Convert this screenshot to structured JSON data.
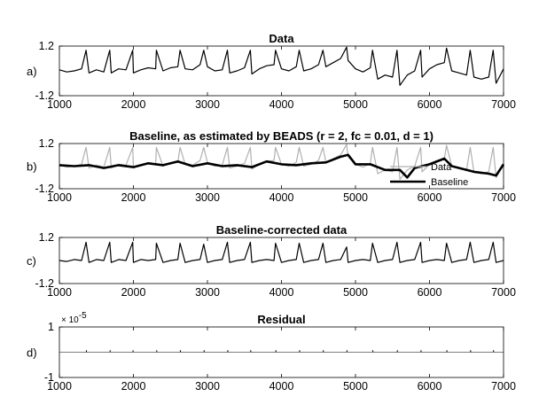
{
  "chart_data": [
    {
      "type": "line",
      "panel_label": "a)",
      "title": "Data",
      "xlim": [
        1000,
        7000
      ],
      "ylim": [
        -1.2,
        1.2
      ],
      "x_ticks": [
        "1000",
        "2000",
        "3000",
        "4000",
        "5000",
        "6000",
        "7000"
      ],
      "y_ticks": [
        "1.2",
        "-1.2"
      ],
      "series": [
        {
          "color": "#000000",
          "x": [
            1000,
            1100,
            1200,
            1300,
            1360,
            1400,
            1500,
            1600,
            1680,
            1700,
            1800,
            1900,
            1990,
            2000,
            2100,
            2200,
            2300,
            2310,
            2400,
            2500,
            2600,
            2630,
            2700,
            2800,
            2900,
            2950,
            3000,
            3100,
            3200,
            3270,
            3300,
            3400,
            3500,
            3580,
            3600,
            3700,
            3800,
            3900,
            3920,
            4000,
            4100,
            4200,
            4240,
            4300,
            4400,
            4500,
            4560,
            4600,
            4700,
            4800,
            4880,
            4900,
            5000,
            5100,
            5200,
            5230,
            5300,
            5400,
            5500,
            5560,
            5600,
            5700,
            5800,
            5880,
            5900,
            6000,
            6100,
            6200,
            6230,
            6300,
            6400,
            6500,
            6550,
            6600,
            6700,
            6800,
            6860,
            6900,
            7000
          ],
          "y": [
            0.05,
            -0.05,
            0.0,
            0.1,
            1.0,
            -0.1,
            0.05,
            -0.05,
            1.0,
            -0.1,
            0.1,
            0.05,
            1.0,
            -0.1,
            0.05,
            0.15,
            0.1,
            1.0,
            0.0,
            0.15,
            0.2,
            1.0,
            0.1,
            0.05,
            0.3,
            1.0,
            0.2,
            0.0,
            0.05,
            1.0,
            -0.1,
            0.0,
            0.15,
            1.0,
            -0.15,
            0.1,
            0.25,
            0.3,
            1.0,
            0.1,
            0.0,
            0.2,
            1.0,
            0.0,
            0.1,
            0.3,
            1.0,
            0.2,
            0.4,
            0.6,
            1.15,
            0.5,
            0.1,
            -0.05,
            0.15,
            1.0,
            -0.4,
            -0.2,
            -0.3,
            1.0,
            -0.7,
            -0.2,
            0.0,
            1.0,
            -0.3,
            0.1,
            0.3,
            0.4,
            1.1,
            0.0,
            -0.1,
            -0.2,
            1.0,
            -0.3,
            -0.4,
            -0.3,
            1.0,
            -0.6,
            0.1
          ]
        }
      ]
    },
    {
      "type": "line",
      "panel_label": "b)",
      "title": "Baseline, as estimated by BEADS (r = 2, fc = 0.01, d = 1)",
      "xlim": [
        1000,
        7000
      ],
      "ylim": [
        -1.2,
        1.2
      ],
      "x_ticks": [
        "1000",
        "2000",
        "3000",
        "4000",
        "5000",
        "6000",
        "7000"
      ],
      "y_ticks": [
        "1.2",
        "-1.2"
      ],
      "legend": {
        "position": "bottom-right",
        "entries": [
          "Data",
          "Baseline"
        ]
      },
      "series": [
        {
          "name": "Data",
          "color": "#b0b0b0",
          "x": [
            1000,
            1100,
            1200,
            1300,
            1360,
            1400,
            1500,
            1600,
            1680,
            1700,
            1800,
            1900,
            1990,
            2000,
            2100,
            2200,
            2300,
            2310,
            2400,
            2500,
            2600,
            2630,
            2700,
            2800,
            2900,
            2950,
            3000,
            3100,
            3200,
            3270,
            3300,
            3400,
            3500,
            3580,
            3600,
            3700,
            3800,
            3900,
            3920,
            4000,
            4100,
            4200,
            4240,
            4300,
            4400,
            4500,
            4560,
            4600,
            4700,
            4800,
            4880,
            4900,
            5000,
            5100,
            5200,
            5230,
            5300,
            5400,
            5500,
            5560,
            5600,
            5700,
            5800,
            5880,
            5900,
            6000,
            6100,
            6200,
            6230,
            6300,
            6400,
            6500,
            6550,
            6600,
            6700,
            6800,
            6860,
            6900,
            7000
          ],
          "y": [
            0.05,
            -0.05,
            0.0,
            0.1,
            1.0,
            -0.1,
            0.05,
            -0.05,
            1.0,
            -0.1,
            0.1,
            0.05,
            1.0,
            -0.1,
            0.05,
            0.15,
            0.1,
            1.0,
            0.0,
            0.15,
            0.2,
            1.0,
            0.1,
            0.05,
            0.3,
            1.0,
            0.2,
            0.0,
            0.05,
            1.0,
            -0.1,
            0.0,
            0.15,
            1.0,
            -0.15,
            0.1,
            0.25,
            0.3,
            1.0,
            0.1,
            0.0,
            0.2,
            1.0,
            0.0,
            0.1,
            0.3,
            1.0,
            0.2,
            0.4,
            0.6,
            1.15,
            0.5,
            0.1,
            -0.05,
            0.15,
            1.0,
            -0.4,
            -0.2,
            -0.3,
            1.0,
            -0.7,
            -0.2,
            0.0,
            1.0,
            -0.3,
            0.1,
            0.3,
            0.4,
            1.1,
            0.0,
            -0.1,
            -0.2,
            1.0,
            -0.3,
            -0.4,
            -0.3,
            1.0,
            -0.6,
            0.1
          ]
        },
        {
          "name": "Baseline",
          "color": "#000000",
          "x": [
            1000,
            1200,
            1400,
            1600,
            1800,
            2000,
            2200,
            2400,
            2600,
            2800,
            3000,
            3200,
            3400,
            3600,
            3800,
            4000,
            4200,
            4400,
            4600,
            4800,
            4900,
            5000,
            5200,
            5400,
            5600,
            5700,
            5800,
            6000,
            6200,
            6300,
            6400,
            6600,
            6800,
            6900,
            7000
          ],
          "y": [
            0.05,
            0.0,
            0.05,
            -0.1,
            0.05,
            -0.05,
            0.15,
            0.05,
            0.25,
            0.0,
            0.15,
            0.0,
            0.05,
            -0.05,
            0.25,
            0.1,
            0.05,
            0.15,
            0.2,
            0.5,
            0.6,
            0.1,
            0.1,
            -0.2,
            -0.2,
            -0.6,
            -0.1,
            0.1,
            0.4,
            0.0,
            -0.1,
            -0.3,
            -0.4,
            -0.5,
            0.1
          ]
        }
      ]
    },
    {
      "type": "line",
      "panel_label": "c)",
      "title": "Baseline-corrected data",
      "xlim": [
        1000,
        7000
      ],
      "ylim": [
        -1.2,
        1.2
      ],
      "x_ticks": [
        "1000",
        "2000",
        "3000",
        "4000",
        "5000",
        "6000",
        "7000"
      ],
      "y_ticks": [
        "1.2",
        "-1.2"
      ],
      "series": [
        {
          "color": "#000000",
          "x": [
            1000,
            1100,
            1200,
            1300,
            1360,
            1400,
            1500,
            1600,
            1680,
            1700,
            1800,
            1900,
            1990,
            2000,
            2100,
            2200,
            2300,
            2310,
            2400,
            2500,
            2600,
            2630,
            2700,
            2800,
            2900,
            2950,
            3000,
            3100,
            3200,
            3270,
            3300,
            3400,
            3500,
            3580,
            3600,
            3700,
            3800,
            3900,
            3920,
            4000,
            4100,
            4200,
            4240,
            4300,
            4400,
            4500,
            4560,
            4600,
            4700,
            4800,
            4880,
            4900,
            5000,
            5100,
            5200,
            5230,
            5300,
            5400,
            5500,
            5560,
            5600,
            5700,
            5800,
            5880,
            5900,
            6000,
            6100,
            6200,
            6230,
            6300,
            6400,
            6500,
            6550,
            6600,
            6700,
            6800,
            6860,
            6900,
            7000
          ],
          "y": [
            0.0,
            -0.05,
            0.05,
            0.0,
            0.95,
            -0.1,
            0.05,
            0.0,
            0.95,
            -0.1,
            0.05,
            0.0,
            0.95,
            -0.1,
            0.05,
            0.0,
            0.05,
            0.9,
            -0.1,
            0.0,
            0.05,
            0.9,
            -0.1,
            0.0,
            0.05,
            0.85,
            -0.1,
            0.0,
            0.05,
            0.95,
            -0.1,
            0.0,
            0.05,
            0.95,
            -0.1,
            0.0,
            0.05,
            0.0,
            0.9,
            -0.1,
            0.0,
            0.05,
            0.9,
            -0.1,
            0.0,
            0.05,
            0.9,
            -0.1,
            0.0,
            0.05,
            0.7,
            -0.1,
            0.0,
            0.05,
            0.0,
            0.9,
            -0.1,
            0.0,
            0.05,
            0.95,
            -0.1,
            0.0,
            0.05,
            0.95,
            -0.1,
            0.0,
            0.05,
            0.0,
            0.9,
            -0.1,
            0.0,
            0.05,
            0.95,
            -0.1,
            0.0,
            0.05,
            0.95,
            -0.1,
            0.0
          ]
        }
      ]
    },
    {
      "type": "line",
      "panel_label": "d)",
      "title": "Residual",
      "xlim": [
        1000,
        7000
      ],
      "ylim": [
        -1,
        1
      ],
      "exponent_label": "× 10",
      "exponent_power": "-5",
      "x_ticks": [
        "1000",
        "2000",
        "3000",
        "4000",
        "5000",
        "6000",
        "7000"
      ],
      "y_ticks": [
        "1",
        "-1"
      ],
      "series": [
        {
          "color": "#000000",
          "x": [
            1000,
            1360,
            1365,
            1370,
            1680,
            1685,
            1690,
            1990,
            1995,
            2000,
            2310,
            2315,
            2320,
            2630,
            2635,
            2640,
            2950,
            2955,
            2960,
            3270,
            3275,
            3280,
            3580,
            3585,
            3590,
            3920,
            3925,
            3930,
            4240,
            4245,
            4250,
            4560,
            4565,
            4570,
            4880,
            4885,
            4890,
            5230,
            5235,
            5240,
            5560,
            5565,
            5570,
            5880,
            5885,
            5890,
            6230,
            6235,
            6240,
            6550,
            6555,
            6560,
            6860,
            6865,
            6870,
            7000
          ],
          "y": [
            0.0,
            0.0,
            0.08,
            0.0,
            0.0,
            0.08,
            0.0,
            0.0,
            0.08,
            0.0,
            0.0,
            0.08,
            0.0,
            0.0,
            0.08,
            0.0,
            0.0,
            0.08,
            0.0,
            0.0,
            0.08,
            0.0,
            0.0,
            0.08,
            0.0,
            0.0,
            0.08,
            0.0,
            0.0,
            0.08,
            0.0,
            0.0,
            0.08,
            0.0,
            0.0,
            0.08,
            0.0,
            0.0,
            0.08,
            0.0,
            0.0,
            0.08,
            0.0,
            0.0,
            0.08,
            0.0,
            0.0,
            0.08,
            0.0,
            0.0,
            0.08,
            0.0,
            0.0,
            0.08,
            0.0,
            0.0
          ]
        }
      ]
    }
  ]
}
